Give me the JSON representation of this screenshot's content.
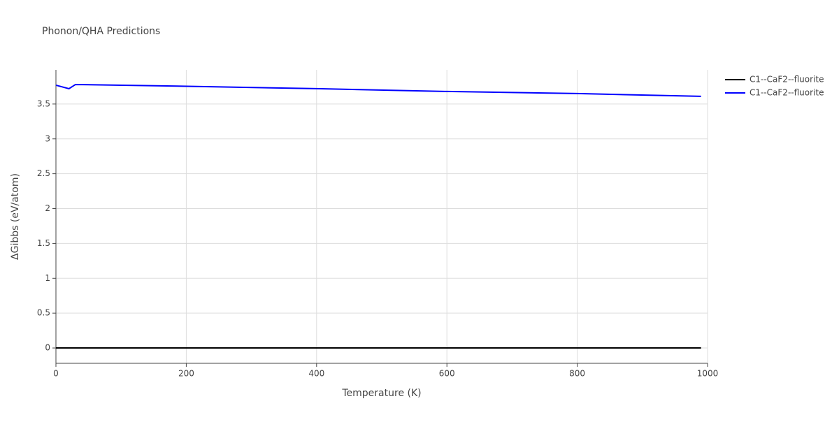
{
  "chart_data": {
    "type": "line",
    "title": "Phonon/QHA Predictions",
    "x_label": "Temperature (K)",
    "y_label": "ΔGibbs (eV/atom)",
    "series": [
      {
        "name": "C1--CaF2--fluorite",
        "color": "#000000",
        "x": [
          0,
          990
        ],
        "values": [
          0,
          0
        ]
      },
      {
        "name": "C1--CaF2--fluorite",
        "color": "#0000ff",
        "x": [
          0,
          20,
          30,
          170,
          400,
          600,
          800,
          990
        ],
        "values": [
          3.77,
          3.72,
          3.78,
          3.76,
          3.72,
          3.68,
          3.65,
          3.61
        ]
      }
    ],
    "xlim": [
      0,
      1000
    ],
    "xticks": [
      0,
      200,
      400,
      600,
      800,
      1000
    ],
    "ylim": [
      -0.22,
      3.99
    ],
    "yticks": [
      0,
      0.5,
      1,
      1.5,
      2,
      2.5,
      3,
      3.5
    ],
    "grid": true,
    "legend": "top-right"
  }
}
